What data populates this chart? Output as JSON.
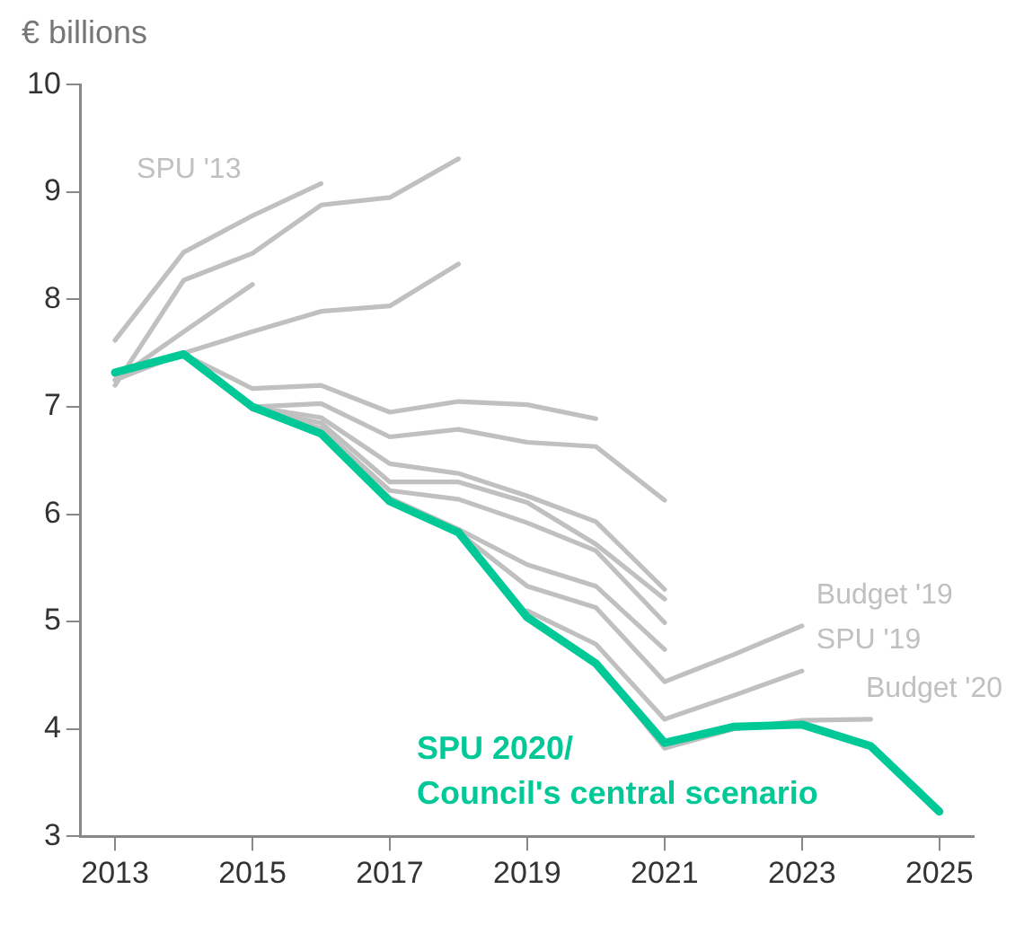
{
  "chart_data": {
    "type": "line",
    "ylabel": "€ billions",
    "x": [
      2013,
      2014,
      2015,
      2016,
      2017,
      2018,
      2019,
      2020,
      2021,
      2022,
      2023,
      2024,
      2025
    ],
    "series": [
      {
        "name": "SPU '13",
        "color": "#c0c0c0",
        "values": [
          7.62,
          8.44,
          8.78,
          9.08,
          null,
          null,
          null,
          null,
          null,
          null,
          null,
          null,
          null
        ]
      },
      {
        "color": "#c0c0c0",
        "values": [
          7.2,
          8.18,
          8.43,
          8.88,
          8.95,
          9.31,
          null,
          null,
          null,
          null,
          null,
          null,
          null
        ]
      },
      {
        "color": "#c0c0c0",
        "values": [
          7.25,
          7.7,
          8.14,
          null,
          null,
          null,
          null,
          null,
          null,
          null,
          null,
          null,
          null
        ]
      },
      {
        "color": "#c0c0c0",
        "values": [
          7.25,
          7.5,
          7.7,
          7.89,
          7.94,
          8.33,
          null,
          null,
          null,
          null,
          null,
          null,
          null
        ]
      },
      {
        "color": "#c0c0c0",
        "values": [
          7.3,
          7.49,
          7.17,
          7.2,
          6.95,
          7.05,
          7.02,
          6.89,
          null,
          null,
          null,
          null,
          null
        ]
      },
      {
        "color": "#c0c0c0",
        "values": [
          7.3,
          7.49,
          7.0,
          7.03,
          6.72,
          6.79,
          6.67,
          6.63,
          6.13,
          null,
          null,
          null,
          null
        ]
      },
      {
        "color": "#c0c0c0",
        "values": [
          7.3,
          7.49,
          7.0,
          6.9,
          6.47,
          6.38,
          6.17,
          5.93,
          5.3,
          null,
          null,
          null,
          null
        ]
      },
      {
        "color": "#c0c0c0",
        "values": [
          7.3,
          7.49,
          6.98,
          6.85,
          6.3,
          6.3,
          6.11,
          5.72,
          5.21,
          null,
          null,
          null,
          null
        ]
      },
      {
        "color": "#c0c0c0",
        "values": [
          7.3,
          7.49,
          6.98,
          6.8,
          6.22,
          6.14,
          5.92,
          5.66,
          4.99,
          null,
          null,
          null,
          null
        ]
      },
      {
        "color": "#c0c0c0",
        "values": [
          7.3,
          7.49,
          6.98,
          6.78,
          6.15,
          5.86,
          5.53,
          5.33,
          4.74,
          null,
          null,
          null,
          null
        ]
      },
      {
        "name": "Budget '19",
        "color": "#c0c0c0",
        "values": [
          null,
          null,
          null,
          null,
          null,
          5.83,
          5.33,
          5.13,
          4.44,
          4.69,
          4.96,
          null,
          null
        ]
      },
      {
        "name": "SPU '19",
        "color": "#c0c0c0",
        "values": [
          null,
          null,
          null,
          null,
          null,
          null,
          5.1,
          4.79,
          4.09,
          4.31,
          4.54,
          null,
          null
        ]
      },
      {
        "name": "Budget '20",
        "color": "#c0c0c0",
        "values": [
          null,
          null,
          null,
          null,
          null,
          null,
          null,
          4.61,
          3.82,
          4.0,
          4.08,
          4.09,
          null
        ]
      },
      {
        "name": "SPU 2020/ Council's central scenario",
        "color": "#00c896",
        "values": [
          7.32,
          7.49,
          7.0,
          6.75,
          6.12,
          5.83,
          5.04,
          4.61,
          3.87,
          4.02,
          4.04,
          3.84,
          3.23
        ]
      }
    ],
    "xlim": [
      2012.5,
      2025.5
    ],
    "xticks": [
      2013,
      2015,
      2017,
      2019,
      2021,
      2023,
      2025
    ],
    "ylim": [
      3,
      10
    ],
    "yticks": [
      3,
      4,
      5,
      6,
      7,
      8,
      9,
      10
    ],
    "grid": false,
    "legend": false,
    "marker": "none",
    "line_style": "solid"
  }
}
